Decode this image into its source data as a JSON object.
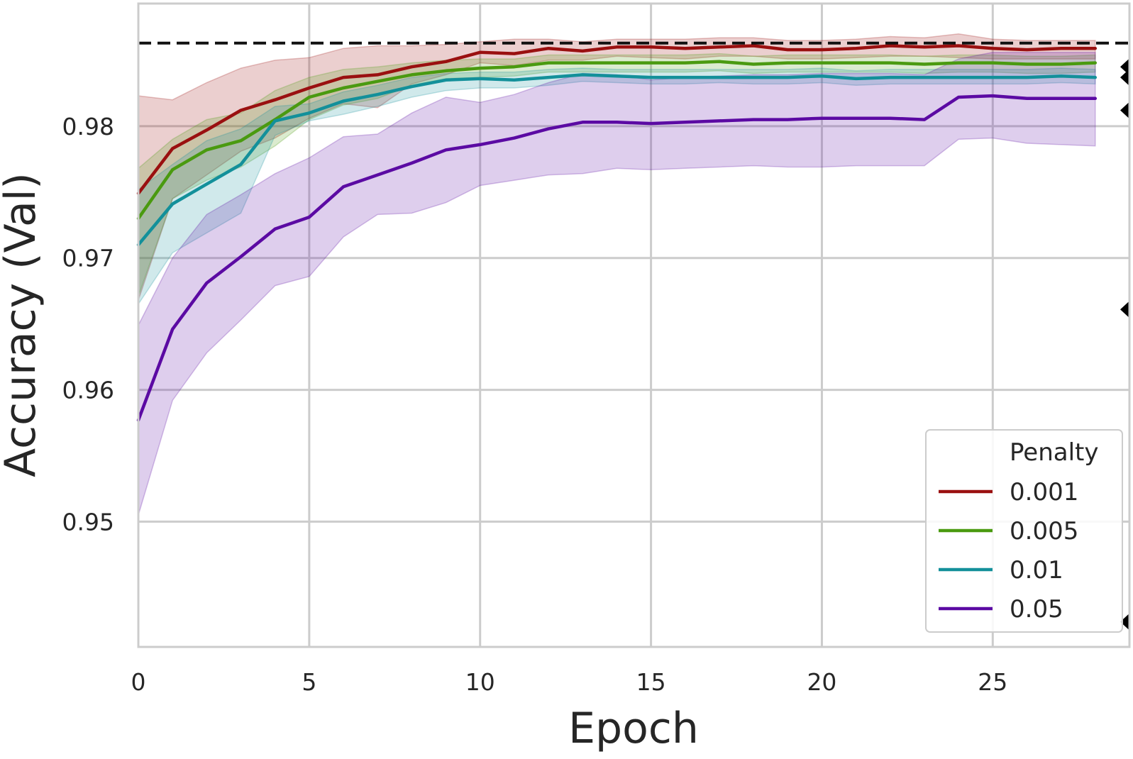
{
  "chart_data": {
    "type": "line",
    "xlabel": "Epoch",
    "ylabel": "Accuracy (Val)",
    "xlim": [
      0,
      29
    ],
    "ylim": [
      0.9405,
      0.9893
    ],
    "x_ticks": [
      0,
      5,
      10,
      15,
      20,
      25
    ],
    "x_tick_labels": [
      "0",
      "5",
      "10",
      "15",
      "20",
      "25"
    ],
    "y_ticks": [
      0.95,
      0.96,
      0.97,
      0.98
    ],
    "y_tick_labels": [
      "0.95",
      "0.96",
      "0.97",
      "0.98"
    ],
    "grid": true,
    "legend": {
      "title": "Penalty",
      "placement": "lower-right"
    },
    "reference_line": {
      "y": 0.9863,
      "style": "dashed",
      "color": "#111111"
    },
    "edge_markers": {
      "x": 29,
      "y": [
        0.9845,
        0.9837,
        0.9812,
        0.9661,
        0.9424
      ],
      "shape": "left-triangle",
      "color": "#000000"
    },
    "x": [
      0,
      1,
      2,
      3,
      4,
      5,
      6,
      7,
      8,
      9,
      10,
      11,
      12,
      13,
      14,
      15,
      16,
      17,
      18,
      19,
      20,
      21,
      22,
      23,
      24,
      25,
      26,
      27,
      28
    ],
    "series": [
      {
        "name": "0.001",
        "color": "#9a1010",
        "values": [
          0.9749,
          0.9783,
          0.9797,
          0.9812,
          0.982,
          0.9829,
          0.9837,
          0.9839,
          0.9845,
          0.9849,
          0.9856,
          0.9855,
          0.9859,
          0.9857,
          0.986,
          0.986,
          0.9859,
          0.986,
          0.9861,
          0.9858,
          0.9858,
          0.9859,
          0.9861,
          0.986,
          0.9861,
          0.9859,
          0.9858,
          0.9859,
          0.9859
        ],
        "lower": [
          0.9668,
          0.9745,
          0.9763,
          0.9781,
          0.9791,
          0.9806,
          0.9817,
          0.9814,
          0.9832,
          0.9839,
          0.9848,
          0.9846,
          0.985,
          0.985,
          0.9853,
          0.9852,
          0.9851,
          0.9853,
          0.9853,
          0.9851,
          0.9851,
          0.9852,
          0.9853,
          0.9853,
          0.9852,
          0.9851,
          0.9851,
          0.9851,
          0.9851
        ],
        "upper": [
          0.9823,
          0.982,
          0.9833,
          0.9844,
          0.985,
          0.9852,
          0.9859,
          0.9861,
          0.9861,
          0.9862,
          0.9864,
          0.9866,
          0.9866,
          0.9864,
          0.9866,
          0.9866,
          0.9866,
          0.9867,
          0.9867,
          0.9865,
          0.9865,
          0.9866,
          0.9868,
          0.9867,
          0.987,
          0.9866,
          0.9865,
          0.9865,
          0.9865
        ]
      },
      {
        "name": "0.005",
        "color": "#4a9a10",
        "values": [
          0.973,
          0.9767,
          0.9782,
          0.9789,
          0.9805,
          0.9822,
          0.9829,
          0.9834,
          0.9839,
          0.9842,
          0.9844,
          0.9845,
          0.9848,
          0.9848,
          0.9848,
          0.9848,
          0.9848,
          0.9849,
          0.9847,
          0.9848,
          0.9848,
          0.9848,
          0.9848,
          0.9847,
          0.9848,
          0.9848,
          0.9847,
          0.9847,
          0.9848
        ],
        "lower": [
          0.9671,
          0.9745,
          0.9759,
          0.9769,
          0.9785,
          0.9805,
          0.9816,
          0.9821,
          0.9831,
          0.9836,
          0.9837,
          0.9838,
          0.9841,
          0.9841,
          0.9841,
          0.9841,
          0.9841,
          0.9842,
          0.984,
          0.9841,
          0.9841,
          0.9841,
          0.9841,
          0.984,
          0.9841,
          0.9841,
          0.984,
          0.984,
          0.9841
        ],
        "upper": [
          0.9768,
          0.979,
          0.9805,
          0.981,
          0.9827,
          0.9837,
          0.9843,
          0.9845,
          0.9848,
          0.985,
          0.9851,
          0.9851,
          0.9854,
          0.9854,
          0.9854,
          0.9854,
          0.9854,
          0.9855,
          0.9853,
          0.9854,
          0.9854,
          0.9854,
          0.9854,
          0.9853,
          0.9854,
          0.9854,
          0.9853,
          0.9853,
          0.9854
        ]
      },
      {
        "name": "0.01",
        "color": "#13909a",
        "values": [
          0.971,
          0.9741,
          0.9756,
          0.9771,
          0.9804,
          0.981,
          0.9819,
          0.9824,
          0.983,
          0.9835,
          0.9836,
          0.9835,
          0.9837,
          0.9839,
          0.9838,
          0.9837,
          0.9837,
          0.9837,
          0.9837,
          0.9837,
          0.9838,
          0.9836,
          0.9837,
          0.9837,
          0.9837,
          0.9837,
          0.9837,
          0.9838,
          0.9837
        ],
        "lower": [
          0.9665,
          0.9704,
          0.9719,
          0.9734,
          0.9793,
          0.9804,
          0.9809,
          0.9815,
          0.9822,
          0.9827,
          0.9829,
          0.9829,
          0.9831,
          0.9834,
          0.9833,
          0.9832,
          0.9832,
          0.9833,
          0.9832,
          0.9832,
          0.9833,
          0.9831,
          0.9832,
          0.9832,
          0.9832,
          0.9832,
          0.9832,
          0.9833,
          0.9832
        ],
        "upper": [
          0.9752,
          0.9771,
          0.9789,
          0.9798,
          0.9815,
          0.9817,
          0.9826,
          0.9831,
          0.9837,
          0.984,
          0.9841,
          0.9841,
          0.9843,
          0.9844,
          0.9843,
          0.9843,
          0.9843,
          0.9843,
          0.9843,
          0.9843,
          0.9844,
          0.9842,
          0.9843,
          0.9843,
          0.9843,
          0.9843,
          0.9843,
          0.9844,
          0.9843
        ]
      },
      {
        "name": "0.05",
        "color": "#5b0aa3",
        "values": [
          0.9577,
          0.9646,
          0.9681,
          0.9701,
          0.9722,
          0.9731,
          0.9754,
          0.9763,
          0.9772,
          0.9782,
          0.9786,
          0.9791,
          0.9798,
          0.9803,
          0.9803,
          0.9802,
          0.9803,
          0.9804,
          0.9805,
          0.9805,
          0.9806,
          0.9806,
          0.9806,
          0.9805,
          0.9822,
          0.9823,
          0.9821,
          0.9821,
          0.9821
        ],
        "lower": [
          0.9505,
          0.9592,
          0.9628,
          0.9653,
          0.9679,
          0.9686,
          0.9716,
          0.9733,
          0.9734,
          0.9742,
          0.9755,
          0.9759,
          0.9763,
          0.9764,
          0.9768,
          0.9767,
          0.9768,
          0.9769,
          0.977,
          0.9769,
          0.9769,
          0.977,
          0.977,
          0.977,
          0.979,
          0.9791,
          0.9787,
          0.9786,
          0.9785
        ],
        "upper": [
          0.9649,
          0.97,
          0.9733,
          0.9748,
          0.9764,
          0.9776,
          0.9792,
          0.9794,
          0.981,
          0.9822,
          0.9818,
          0.9824,
          0.9833,
          0.984,
          0.9839,
          0.9835,
          0.9837,
          0.9838,
          0.9839,
          0.9839,
          0.984,
          0.984,
          0.984,
          0.9839,
          0.9851,
          0.9856,
          0.9856,
          0.9856,
          0.9856
        ]
      }
    ]
  }
}
